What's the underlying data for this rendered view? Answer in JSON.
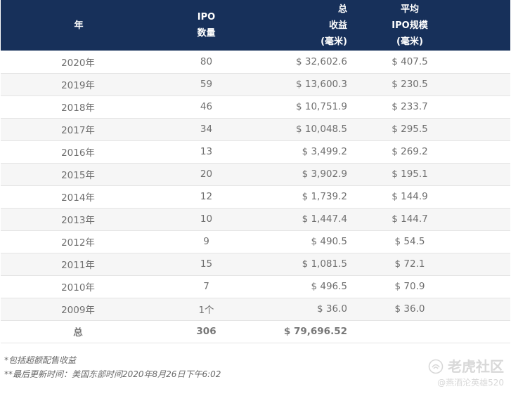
{
  "table": {
    "headers": {
      "year": "年",
      "count_lines": [
        "IPO",
        "数量"
      ],
      "proceeds_lines": [
        "总",
        "收益",
        "(毫米)"
      ],
      "avg_lines": [
        "平均",
        "IPO规模",
        "(毫米)"
      ]
    },
    "rows": [
      {
        "year": "2020年",
        "count": "80",
        "proceeds": "$ 32,602.6",
        "avg": "$ 407.5"
      },
      {
        "year": "2019年",
        "count": "59",
        "proceeds": "$ 13,600.3",
        "avg": "$ 230.5"
      },
      {
        "year": "2018年",
        "count": "46",
        "proceeds": "$ 10,751.9",
        "avg": "$ 233.7"
      },
      {
        "year": "2017年",
        "count": "34",
        "proceeds": "$ 10,048.5",
        "avg": "$ 295.5"
      },
      {
        "year": "2016年",
        "count": "13",
        "proceeds": "$ 3,499.2",
        "avg": "$ 269.2"
      },
      {
        "year": "2015年",
        "count": "20",
        "proceeds": "$ 3,902.9",
        "avg": "$ 195.1"
      },
      {
        "year": "2014年",
        "count": "12",
        "proceeds": "$ 1,739.2",
        "avg": "$ 144.9"
      },
      {
        "year": "2013年",
        "count": "10",
        "proceeds": "$ 1,447.4",
        "avg": "$ 144.7"
      },
      {
        "year": "2012年",
        "count": "9",
        "proceeds": "$ 490.5",
        "avg": "$ 54.5"
      },
      {
        "year": "2011年",
        "count": "15",
        "proceeds": "$ 1,081.5",
        "avg": "$ 72.1"
      },
      {
        "year": "2010年",
        "count": "7",
        "proceeds": "$ 496.5",
        "avg": "$ 70.9"
      },
      {
        "year": "2009年",
        "count": "1个",
        "proceeds": "$ 36.0",
        "avg": "$ 36.0"
      }
    ],
    "total": {
      "label": "总",
      "count": "306",
      "proceeds": "$ 79,696.52",
      "avg": ""
    }
  },
  "notes": [
    "*包括超额配售收益",
    "**最后更新时间：美国东部时间2020年8月26日下午6:02"
  ],
  "watermark": {
    "brand": "老虎社区",
    "user": "@燕酒沦英雄520",
    "logo_icon": "tiger-logo-icon"
  },
  "colors": {
    "header_bg": "#17305a",
    "stripe": "#f6f6f6"
  }
}
